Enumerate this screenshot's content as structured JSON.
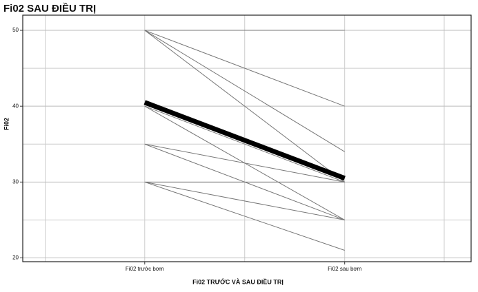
{
  "chart_data": {
    "type": "paired-line",
    "title": "Fi02 SAU ĐIỀU TRỊ",
    "x_label": "Fi02 TRƯỚC VÀ SAU ĐIỀU TRỊ",
    "y_label": "Fi02",
    "categories": [
      "Fi02 trước bơm",
      "Fi02 sau bơm"
    ],
    "series": [
      {
        "color": "#777777",
        "line_width": 1,
        "values": [
          50,
          50
        ]
      },
      {
        "color": "#777777",
        "line_width": 1,
        "values": [
          50,
          40
        ]
      },
      {
        "color": "#777777",
        "line_width": 1,
        "values": [
          50,
          34
        ]
      },
      {
        "color": "#777777",
        "line_width": 1,
        "values": [
          50,
          30
        ]
      },
      {
        "color": "#777777",
        "line_width": 1,
        "values": [
          40,
          30
        ]
      },
      {
        "color": "#777777",
        "line_width": 1,
        "values": [
          40,
          25
        ]
      },
      {
        "color": "#777777",
        "line_width": 1,
        "values": [
          35,
          30
        ]
      },
      {
        "color": "#777777",
        "line_width": 1,
        "values": [
          35,
          25
        ]
      },
      {
        "color": "#777777",
        "line_width": 1,
        "values": [
          30,
          30
        ]
      },
      {
        "color": "#777777",
        "line_width": 1,
        "values": [
          30,
          25
        ]
      },
      {
        "color": "#777777",
        "line_width": 1,
        "values": [
          30,
          21
        ]
      },
      {
        "color": "#000000",
        "line_width": 7,
        "values": [
          40.5,
          30.5
        ]
      }
    ],
    "ylim": [
      19.5,
      52
    ],
    "yticks": [
      20,
      30,
      40,
      50
    ],
    "minor_grid": [
      25,
      35,
      45
    ],
    "grid": true
  }
}
